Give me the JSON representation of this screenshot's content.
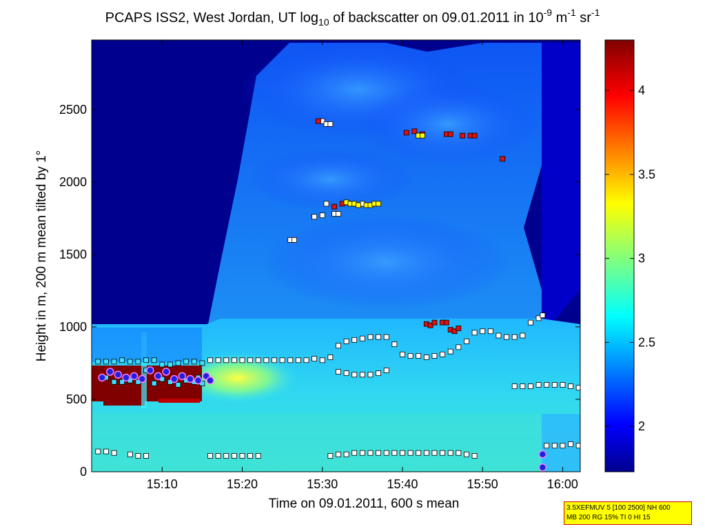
{
  "title": {
    "prefix": "PCAPS ISS2, West Jordan, UT log",
    "sub": "10",
    "middle": " of backscatter on 09.01.2011 in 10",
    "exp1": "-9",
    "unit1": " m",
    "exp2": "-1",
    "unit2": " sr",
    "exp3": "-1"
  },
  "info_box": {
    "line1": "3.5XEFMUV 5 [100 2500] NH 600",
    "line2": "MB 200 RG 15% TI 0 HI 15"
  },
  "colors": {
    "background_low": "#00008f",
    "layer_high": "#800000",
    "marker_white": "#ffffff",
    "marker_red": "#e01010",
    "marker_yellow": "#ffff00",
    "marker_cyan": "#40e0ff",
    "marker_purple": "#2020e0"
  },
  "chart_data": {
    "type": "heatmap",
    "xlabel": "Time on 09.01.2011, 600 s mean",
    "ylabel": "Height in m, 200 m mean tilted by 1°",
    "x_ticks": [
      "15:10",
      "15:20",
      "15:30",
      "15:40",
      "15:50",
      "16:00"
    ],
    "x_tick_minutes": [
      910,
      920,
      930,
      940,
      950,
      960
    ],
    "xlim_minutes": [
      901.2,
      962.2
    ],
    "y_ticks": [
      0,
      500,
      1000,
      1500,
      2000,
      2500
    ],
    "ylim": [
      0,
      2980
    ],
    "colorbar": {
      "ticks": [
        2,
        2.5,
        3,
        3.5,
        4
      ],
      "range": [
        1.73,
        4.3
      ],
      "colormap": "jet"
    },
    "grid": false,
    "layer_markers": [
      {
        "name": "upper",
        "color": "white",
        "points": [
          [
            930,
            2420
          ],
          [
            930.5,
            2400
          ],
          [
            931,
            2400
          ],
          [
            935,
            1850
          ],
          [
            930.5,
            1850
          ],
          [
            929,
            1760
          ],
          [
            930,
            1770
          ],
          [
            931.5,
            1780
          ],
          [
            932,
            1780
          ],
          [
            926,
            1600
          ],
          [
            926.5,
            1600
          ]
        ]
      },
      {
        "name": "upper",
        "color": "red",
        "points": [
          [
            929.5,
            2420
          ],
          [
            931.5,
            1830
          ],
          [
            932.5,
            1850
          ],
          [
            940.5,
            2340
          ],
          [
            941.5,
            2350
          ],
          [
            942.5,
            2330
          ],
          [
            945.5,
            2330
          ],
          [
            946,
            2330
          ],
          [
            947.5,
            2320
          ],
          [
            948.5,
            2320
          ],
          [
            949,
            2320
          ],
          [
            952.5,
            2160
          ],
          [
            943,
            1020
          ],
          [
            943.5,
            1010
          ],
          [
            944,
            1030
          ],
          [
            945,
            1030
          ],
          [
            945.5,
            1030
          ],
          [
            946,
            980
          ],
          [
            946.5,
            970
          ],
          [
            947,
            990
          ]
        ]
      },
      {
        "name": "upper",
        "color": "yellow",
        "points": [
          [
            942,
            2320
          ],
          [
            942.5,
            2320
          ],
          [
            933,
            1860
          ],
          [
            933.5,
            1850
          ],
          [
            934,
            1850
          ],
          [
            934.5,
            1840
          ],
          [
            935.5,
            1840
          ],
          [
            936,
            1840
          ],
          [
            936.5,
            1850
          ],
          [
            937,
            1850
          ]
        ]
      },
      {
        "name": "layer",
        "color": "white",
        "points": [
          [
            916,
            770
          ],
          [
            917,
            770
          ],
          [
            918,
            770
          ],
          [
            919,
            770
          ],
          [
            920,
            770
          ],
          [
            921,
            770
          ],
          [
            922,
            770
          ],
          [
            923,
            770
          ],
          [
            924,
            770
          ],
          [
            925,
            770
          ],
          [
            926,
            770
          ],
          [
            927,
            770
          ],
          [
            928,
            770
          ],
          [
            929,
            780
          ],
          [
            930,
            770
          ],
          [
            931,
            790
          ],
          [
            932,
            870
          ],
          [
            933,
            900
          ],
          [
            934,
            910
          ],
          [
            935,
            920
          ],
          [
            936,
            930
          ],
          [
            937,
            930
          ],
          [
            938,
            930
          ],
          [
            939,
            880
          ],
          [
            940,
            810
          ],
          [
            941,
            800
          ],
          [
            942,
            800
          ],
          [
            943,
            790
          ],
          [
            944,
            800
          ],
          [
            945,
            810
          ],
          [
            946,
            830
          ],
          [
            947,
            860
          ],
          [
            948,
            900
          ],
          [
            949,
            960
          ],
          [
            950,
            970
          ],
          [
            951,
            970
          ],
          [
            952,
            940
          ],
          [
            953,
            930
          ],
          [
            954,
            930
          ],
          [
            955,
            940
          ],
          [
            956,
            1030
          ],
          [
            957,
            1060
          ],
          [
            957.5,
            1080
          ]
        ]
      },
      {
        "name": "layer",
        "color": "cyan",
        "points": [
          [
            903,
            650
          ],
          [
            904,
            620
          ],
          [
            905,
            620
          ],
          [
            906,
            630
          ],
          [
            907,
            620
          ],
          [
            908,
            700
          ],
          [
            909,
            610
          ],
          [
            910,
            640
          ],
          [
            911,
            620
          ],
          [
            912,
            600
          ],
          [
            913,
            630
          ],
          [
            914,
            620
          ],
          [
            914.5,
            650
          ],
          [
            915,
            610
          ],
          [
            902,
            760
          ],
          [
            903,
            760
          ],
          [
            904,
            760
          ],
          [
            905,
            770
          ],
          [
            906,
            760
          ],
          [
            907,
            760
          ],
          [
            908,
            770
          ],
          [
            909,
            770
          ],
          [
            910,
            740
          ],
          [
            911,
            740
          ],
          [
            912,
            750
          ],
          [
            913,
            760
          ],
          [
            914,
            760
          ],
          [
            915,
            750
          ]
        ]
      },
      {
        "name": "layer",
        "color": "purple",
        "points": [
          [
            902.5,
            650
          ],
          [
            903.5,
            690
          ],
          [
            904.5,
            670
          ],
          [
            905.5,
            650
          ],
          [
            906.5,
            660
          ],
          [
            907.5,
            640
          ],
          [
            908.5,
            700
          ],
          [
            909.5,
            660
          ],
          [
            910.5,
            690
          ],
          [
            911.5,
            640
          ],
          [
            912.5,
            660
          ],
          [
            913.5,
            640
          ],
          [
            914.5,
            630
          ],
          [
            915.5,
            660
          ],
          [
            916,
            630
          ],
          [
            957.5,
            120
          ],
          [
            957.5,
            30
          ]
        ]
      },
      {
        "name": "middle",
        "color": "white",
        "points": [
          [
            932,
            690
          ],
          [
            933,
            680
          ],
          [
            934,
            670
          ],
          [
            935,
            670
          ],
          [
            936,
            670
          ],
          [
            937,
            680
          ],
          [
            938,
            700
          ],
          [
            954,
            590
          ],
          [
            955,
            590
          ],
          [
            956,
            590
          ],
          [
            957,
            600
          ],
          [
            958,
            600
          ],
          [
            959,
            600
          ],
          [
            960,
            600
          ],
          [
            961,
            590
          ],
          [
            962,
            580
          ]
        ]
      },
      {
        "name": "lower",
        "color": "white",
        "points": [
          [
            902,
            140
          ],
          [
            903,
            140
          ],
          [
            904,
            130
          ],
          [
            906,
            120
          ],
          [
            907,
            110
          ],
          [
            908,
            110
          ],
          [
            916,
            110
          ],
          [
            917,
            110
          ],
          [
            918,
            110
          ],
          [
            919,
            110
          ],
          [
            920,
            110
          ],
          [
            921,
            110
          ],
          [
            922,
            110
          ],
          [
            931,
            110
          ],
          [
            932,
            120
          ],
          [
            933,
            120
          ],
          [
            934,
            130
          ],
          [
            935,
            130
          ],
          [
            936,
            130
          ],
          [
            937,
            130
          ],
          [
            938,
            130
          ],
          [
            939,
            130
          ],
          [
            940,
            130
          ],
          [
            941,
            130
          ],
          [
            942,
            130
          ],
          [
            943,
            130
          ],
          [
            944,
            130
          ],
          [
            945,
            130
          ],
          [
            946,
            130
          ],
          [
            947,
            130
          ],
          [
            948,
            120
          ],
          [
            949,
            110
          ],
          [
            958,
            180
          ],
          [
            959,
            180
          ],
          [
            960,
            180
          ],
          [
            961,
            190
          ],
          [
            962,
            180
          ]
        ]
      }
    ]
  }
}
